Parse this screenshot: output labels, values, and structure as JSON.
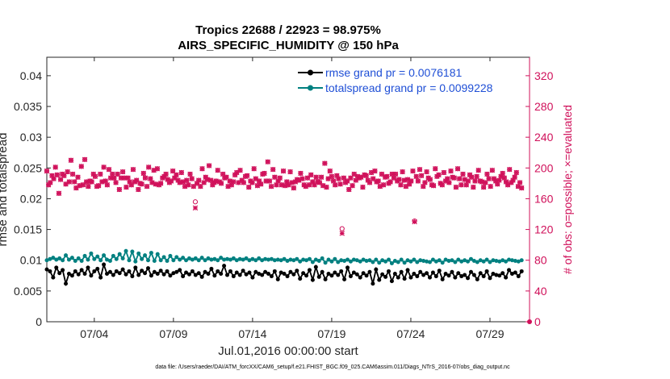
{
  "chart_data": {
    "type": "line",
    "title": "Tropics 22688 / 22923 = 98.975%",
    "subtitle": "AIRS_SPECIFIC_HUMIDITY @ 150 hPa",
    "xlabel": "Jul.01,2016 00:00:00 start",
    "ylabel_left": "rmse and totalspread",
    "ylabel_right": "# of obs: o=possible; ×=evaluated",
    "ylim_left": [
      0,
      0.043
    ],
    "ylim_right": [
      0,
      344
    ],
    "xlim_days": [
      1.0,
      31.5
    ],
    "x_tick_labels": [
      "07/04",
      "07/09",
      "07/14",
      "07/19",
      "07/24",
      "07/29"
    ],
    "x_tick_days": [
      4,
      9,
      14,
      19,
      24,
      29
    ],
    "y_left_ticks": [
      "0",
      "0.005",
      "0.01",
      "0.015",
      "0.02",
      "0.025",
      "0.03",
      "0.035",
      "0.04"
    ],
    "y_left_tick_values": [
      0,
      0.005,
      0.01,
      0.015,
      0.02,
      0.025,
      0.03,
      0.035,
      0.04
    ],
    "y_right_ticks": [
      "0",
      "40",
      "80",
      "120",
      "160",
      "200",
      "240",
      "280",
      "320"
    ],
    "y_right_tick_values": [
      0,
      40,
      80,
      120,
      160,
      200,
      240,
      280,
      320
    ],
    "legend": {
      "rmse_label": "rmse grand pr = 0.0076181",
      "spread_label": "totalspread grand pr = 0.0099228",
      "placement": "top-right"
    },
    "colors": {
      "rmse": "#000000",
      "spread": "#008080",
      "obs": "#d0105a",
      "legend_text": "#1f4fd6"
    },
    "series": [
      {
        "name": "rmse",
        "values": [
          0.0085,
          0.0082,
          0.0072,
          0.0088,
          0.0079,
          0.0084,
          0.0062,
          0.0078,
          0.0075,
          0.0082,
          0.0077,
          0.0084,
          0.0078,
          0.0088,
          0.0075,
          0.0082,
          0.0086,
          0.0072,
          0.0093,
          0.0078,
          0.0081,
          0.0076,
          0.0082,
          0.0079,
          0.0085,
          0.0077,
          0.0082,
          0.0074,
          0.0088,
          0.0076,
          0.0083,
          0.0079,
          0.0087,
          0.0075,
          0.0081,
          0.0078,
          0.0083,
          0.0077,
          0.0082,
          0.0075,
          0.0079,
          0.0081,
          0.0084,
          0.0074,
          0.008,
          0.0077,
          0.0082,
          0.0076,
          0.0079,
          0.0073,
          0.0081,
          0.0078,
          0.0086,
          0.0075,
          0.0082,
          0.0078,
          0.0091,
          0.0076,
          0.0082,
          0.0074,
          0.008,
          0.0076,
          0.0083,
          0.0077,
          0.008,
          0.0072,
          0.0081,
          0.0078,
          0.0076,
          0.0081,
          0.0078,
          0.0074,
          0.0082,
          0.0069,
          0.008,
          0.0078,
          0.0074,
          0.0081,
          0.0077,
          0.0083,
          0.007,
          0.0079,
          0.0075,
          0.0084,
          0.0068,
          0.0089,
          0.0073,
          0.0081,
          0.0069,
          0.0078,
          0.0075,
          0.008,
          0.0076,
          0.0082,
          0.0069,
          0.0088,
          0.0074,
          0.008,
          0.0077,
          0.0072,
          0.0079,
          0.0075,
          0.0081,
          0.0062,
          0.0085,
          0.0068,
          0.0077,
          0.0073,
          0.0082,
          0.0066,
          0.0078,
          0.0072,
          0.0081,
          0.007,
          0.0084,
          0.0072,
          0.0078,
          0.0074,
          0.0081,
          0.0076,
          0.0079,
          0.0072,
          0.008,
          0.0074,
          0.0083,
          0.0069,
          0.0078,
          0.0075,
          0.0081,
          0.0072,
          0.0079,
          0.0074,
          0.0076,
          0.0071,
          0.0081,
          0.0076,
          0.0069,
          0.0079,
          0.0074,
          0.0082,
          0.0071,
          0.0078,
          0.0076,
          0.0075,
          0.0079,
          0.0072,
          0.0084,
          0.0078,
          0.008,
          0.0074,
          0.0082
        ]
      },
      {
        "name": "totalspread",
        "values": [
          0.01,
          0.0102,
          0.0104,
          0.0101,
          0.0103,
          0.01,
          0.0108,
          0.0101,
          0.0104,
          0.0099,
          0.0103,
          0.0099,
          0.0107,
          0.0101,
          0.0111,
          0.0102,
          0.0106,
          0.01,
          0.0108,
          0.0101,
          0.0099,
          0.0107,
          0.0102,
          0.011,
          0.0103,
          0.0115,
          0.01,
          0.0114,
          0.0098,
          0.0111,
          0.0102,
          0.0108,
          0.01,
          0.0112,
          0.0099,
          0.011,
          0.01,
          0.0105,
          0.0099,
          0.0107,
          0.01,
          0.0105,
          0.0101,
          0.0104,
          0.01,
          0.0103,
          0.0101,
          0.0103,
          0.01,
          0.0104,
          0.01,
          0.0103,
          0.0101,
          0.0102,
          0.01,
          0.0104,
          0.0101,
          0.0102,
          0.0101,
          0.0103,
          0.01,
          0.0102,
          0.0101,
          0.0103,
          0.01,
          0.0102,
          0.01,
          0.0103,
          0.01,
          0.0102,
          0.0101,
          0.0102,
          0.01,
          0.0101,
          0.01,
          0.0102,
          0.0099,
          0.0101,
          0.01,
          0.0102,
          0.0098,
          0.0101,
          0.01,
          0.0102,
          0.0097,
          0.0101,
          0.0099,
          0.0103,
          0.0096,
          0.0101,
          0.0098,
          0.0102,
          0.0097,
          0.01,
          0.0099,
          0.0101,
          0.0098,
          0.0101,
          0.01,
          0.0098,
          0.0101,
          0.0099,
          0.01,
          0.0097,
          0.0101,
          0.0096,
          0.01,
          0.0098,
          0.0101,
          0.0095,
          0.0099,
          0.0097,
          0.0101,
          0.0096,
          0.01,
          0.0098,
          0.0101,
          0.0097,
          0.01,
          0.0099,
          0.0098,
          0.0097,
          0.0101,
          0.0098,
          0.01,
          0.0096,
          0.0101,
          0.0099,
          0.01,
          0.0097,
          0.0101,
          0.0098,
          0.01,
          0.0098,
          0.0102,
          0.0099,
          0.0097,
          0.01,
          0.0098,
          0.0101,
          0.0097,
          0.01,
          0.0099,
          0.0098,
          0.01,
          0.0098,
          0.0101,
          0.01,
          0.0099,
          0.0098,
          0.01
        ]
      },
      {
        "name": "obs_possible",
        "values": [
          196,
          178,
          181,
          190,
          186,
          201,
          191,
          167,
          185,
          192,
          190,
          179,
          195,
          182,
          210,
          192,
          182,
          174,
          188,
          177,
          202,
          178,
          211,
          182,
          176,
          183,
          182,
          192,
          189,
          176,
          177,
          192,
          182,
          201,
          183,
          178,
          198,
          187,
          192,
          187,
          181,
          192,
          172,
          187,
          195,
          187,
          175,
          187,
          182,
          178,
          198,
          182,
          184,
          172,
          180,
          179,
          193,
          187,
          176,
          201,
          186,
          181,
          197,
          179,
          199,
          178,
          180,
          187,
          189,
          192,
          185,
          181,
          183,
          196,
          187,
          191,
          184,
          181,
          194,
          182,
          176,
          184,
          178,
          192,
          186,
          176,
          156,
          180,
          184,
          176,
          199,
          181,
          188,
          185,
          203,
          184,
          178,
          181,
          183,
          197,
          182,
          180,
          192,
          187,
          188,
          176,
          183,
          178,
          182,
          191,
          194,
          181,
          197,
          184,
          181,
          189,
          190,
          175,
          183,
          181,
          199,
          186,
          177,
          183,
          179,
          192,
          193,
          183,
          208,
          183,
          176,
          198,
          188,
          178,
          183,
          187,
          178,
          196,
          177,
          182,
          178,
          195,
          181,
          174,
          182,
          185,
          184,
          193,
          186,
          178,
          176,
          187,
          178,
          191,
          182,
          178,
          188,
          182,
          181,
          188,
          177,
          206,
          175,
          186,
          196,
          189,
          183,
          178,
          190,
          186,
          179,
          121,
          187,
          181,
          183,
          172,
          187,
          177,
          192,
          184,
          189,
          187,
          188,
          175,
          191,
          190,
          184,
          181,
          194,
          186,
          196,
          182,
          183,
          176,
          192,
          178,
          188,
          189,
          180,
          182,
          192,
          187,
          192,
          183,
          185,
          178,
          195,
          184,
          176,
          185,
          179,
          183,
          196,
          131,
          189,
          183,
          198,
          190,
          176,
          181,
          195,
          187,
          185,
          178,
          177,
          199,
          189,
          191,
          180,
          178,
          194,
          183,
          186,
          181,
          196,
          188,
          187,
          175,
          199,
          186,
          178,
          192,
          185,
          178,
          183,
          191,
          188,
          175,
          183,
          189,
          197,
          183,
          182,
          175,
          181,
          192,
          186,
          176,
          197,
          186,
          183,
          179,
          184,
          189,
          193,
          187,
          182,
          178,
          198,
          181,
          184,
          188,
          194,
          176,
          181,
          174
        ]
      },
      {
        "name": "obs_evaluated",
        "values": [
          196,
          178,
          181,
          190,
          186,
          201,
          191,
          167,
          185,
          192,
          190,
          179,
          195,
          182,
          210,
          192,
          182,
          174,
          188,
          177,
          202,
          178,
          211,
          182,
          176,
          183,
          182,
          192,
          189,
          176,
          177,
          192,
          182,
          201,
          183,
          178,
          198,
          187,
          192,
          187,
          181,
          192,
          172,
          187,
          195,
          187,
          175,
          187,
          182,
          178,
          198,
          182,
          184,
          172,
          180,
          179,
          193,
          187,
          176,
          201,
          186,
          181,
          197,
          179,
          199,
          178,
          180,
          187,
          189,
          192,
          185,
          181,
          183,
          196,
          187,
          191,
          184,
          181,
          194,
          182,
          176,
          184,
          178,
          192,
          186,
          176,
          148,
          180,
          184,
          176,
          199,
          181,
          188,
          185,
          203,
          184,
          178,
          181,
          183,
          197,
          182,
          180,
          192,
          187,
          188,
          176,
          183,
          178,
          182,
          191,
          194,
          181,
          197,
          184,
          181,
          189,
          190,
          175,
          183,
          181,
          199,
          186,
          177,
          183,
          179,
          192,
          193,
          183,
          208,
          183,
          176,
          198,
          188,
          178,
          183,
          187,
          178,
          196,
          177,
          182,
          178,
          195,
          181,
          174,
          182,
          185,
          184,
          193,
          186,
          178,
          176,
          187,
          178,
          191,
          182,
          178,
          188,
          182,
          181,
          188,
          177,
          206,
          175,
          186,
          196,
          189,
          183,
          178,
          190,
          186,
          179,
          115,
          187,
          181,
          183,
          172,
          187,
          177,
          192,
          184,
          189,
          187,
          188,
          175,
          191,
          190,
          184,
          181,
          194,
          186,
          196,
          182,
          183,
          176,
          192,
          178,
          188,
          189,
          180,
          182,
          192,
          187,
          192,
          183,
          185,
          178,
          195,
          184,
          176,
          185,
          179,
          183,
          196,
          130,
          189,
          183,
          198,
          190,
          176,
          181,
          195,
          187,
          185,
          178,
          177,
          199,
          189,
          191,
          180,
          178,
          194,
          183,
          186,
          181,
          196,
          188,
          187,
          175,
          199,
          186,
          178,
          192,
          185,
          178,
          183,
          191,
          188,
          175,
          183,
          189,
          197,
          183,
          182,
          175,
          181,
          192,
          186,
          176,
          197,
          186,
          183,
          179,
          184,
          189,
          193,
          187,
          182,
          178,
          198,
          181,
          184,
          188,
          194,
          176,
          181,
          174
        ]
      }
    ],
    "footer_note": "data file: /Users/raeder/DAI/ATM_forcXX/CAM6_setup/f.e21.FHIST_BGC.f09_025.CAM6assim.011/Diags_NTrS_2016-07/obs_diag_output.nc"
  }
}
